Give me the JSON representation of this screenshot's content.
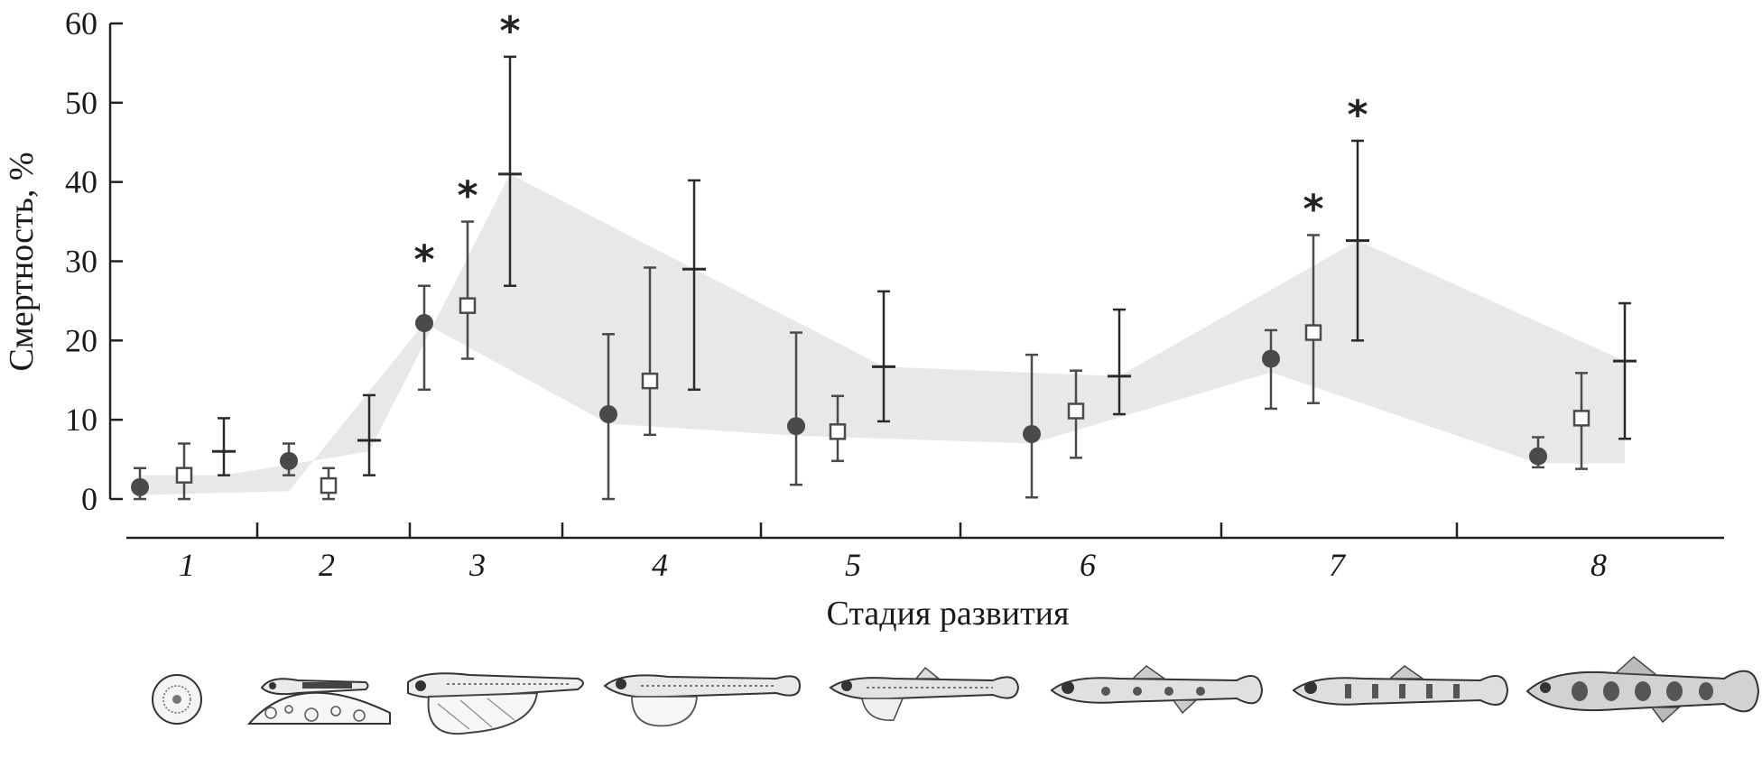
{
  "chart_data": {
    "type": "scatter",
    "ylabel": "Смертность, %",
    "xlabel": "Стадия развития",
    "ylim": [
      0,
      60
    ],
    "yticks": [
      0,
      10,
      20,
      30,
      40,
      50,
      60
    ],
    "categories": [
      "1",
      "2",
      "3",
      "4",
      "5",
      "6",
      "7",
      "8"
    ],
    "grid": false,
    "significance_marker": "*",
    "series": [
      {
        "marker": "filled-circle",
        "color": "#4a4a4a",
        "values": [
          1.5,
          4.8,
          22.2,
          10.7,
          9.2,
          8.2,
          17.7,
          5.4
        ],
        "err_low": [
          0,
          3.0,
          13.8,
          0,
          1.8,
          0.2,
          11.4,
          4.0
        ],
        "err_high": [
          3.9,
          7.0,
          26.9,
          20.8,
          21.0,
          18.2,
          21.3,
          7.8
        ],
        "significant": [
          false,
          false,
          true,
          false,
          false,
          false,
          false,
          false
        ]
      },
      {
        "marker": "open-square",
        "color": "#4a4a4a",
        "values": [
          3.0,
          1.7,
          24.4,
          14.9,
          8.5,
          11.1,
          21.0,
          10.2
        ],
        "err_low": [
          0,
          0,
          17.7,
          8.1,
          4.8,
          5.2,
          12.1,
          3.8
        ],
        "err_high": [
          7.0,
          3.9,
          35.0,
          29.2,
          13.0,
          16.2,
          33.3,
          15.9
        ],
        "significant": [
          false,
          false,
          true,
          false,
          false,
          false,
          true,
          false
        ]
      },
      {
        "marker": "horizontal-bar",
        "color": "#2a2a2a",
        "values": [
          6.0,
          7.4,
          41.0,
          29.0,
          16.7,
          15.5,
          32.6,
          17.4
        ],
        "err_low": [
          3.0,
          3.0,
          26.9,
          13.8,
          9.8,
          10.7,
          20.0,
          7.6
        ],
        "err_high": [
          10.2,
          13.1,
          55.8,
          40.2,
          26.2,
          23.9,
          45.2,
          24.7
        ],
        "significant": [
          false,
          false,
          true,
          false,
          false,
          false,
          true,
          false
        ]
      }
    ],
    "band_color": "#e8e8e8",
    "band": {
      "upper": [
        3.0,
        6.0,
        41.0,
        29.0,
        16.7,
        15.5,
        32.6,
        17.4
      ],
      "lower": [
        0.5,
        1.0,
        22.2,
        9.5,
        8.0,
        7.0,
        16.0,
        4.5
      ]
    }
  },
  "stage_illustrations": [
    "egg-illustration",
    "embryo-on-yolk-illustration",
    "larva-with-yolk-sac-illustration",
    "larva-illustration",
    "larva-finfold-illustration",
    "fry-illustration",
    "parr-illustration",
    "juvenile-illustration"
  ]
}
